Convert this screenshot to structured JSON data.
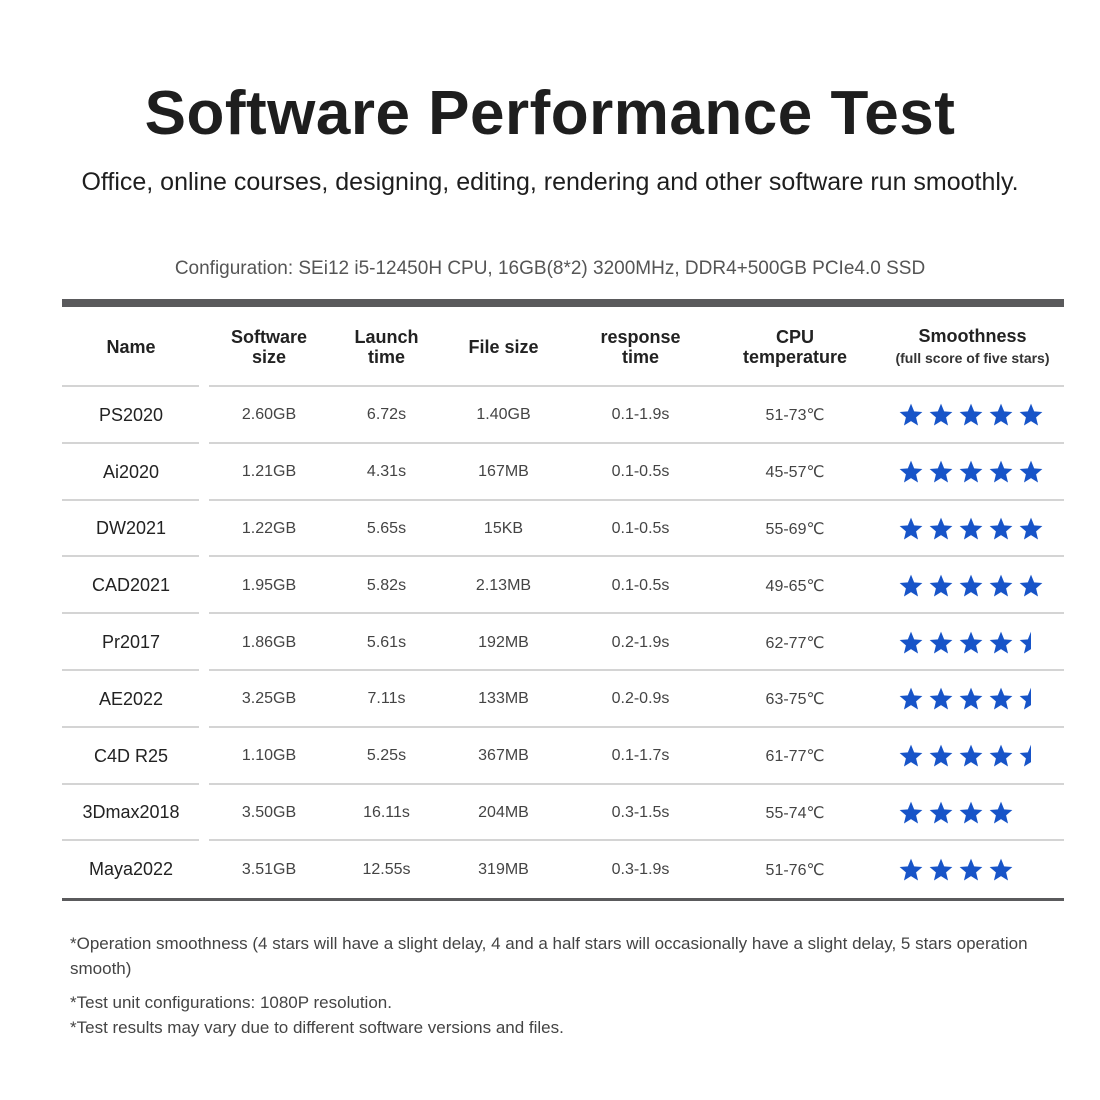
{
  "title": "Software Performance Test",
  "subtitle": "Office, online courses, designing, editing, rendering and other software run smoothly.",
  "configuration": "Configuration: SEi12 i5-12450H CPU, 16GB(8*2) 3200MHz, DDR4+500GB PCIe4.0 SSD",
  "colors": {
    "star": "#1754c8",
    "rule": "#5a5a5c"
  },
  "table": {
    "headers": {
      "name": "Name",
      "software_size_1": "Software",
      "software_size_2": "size",
      "launch_time_1": "Launch",
      "launch_time_2": "time",
      "file_size": "File size",
      "response_time_1": "response",
      "response_time_2": "time",
      "cpu_temp_1": "CPU",
      "cpu_temp_2": "temperature",
      "smoothness": "Smoothness",
      "smoothness_note": "(full score of five stars)"
    },
    "rows": [
      {
        "name": "PS2020",
        "software_size": "2.60GB",
        "launch_time": "6.72s",
        "file_size": "1.40GB",
        "response_time": "0.1-1.9s",
        "cpu_temp": "51-73℃",
        "stars": 5
      },
      {
        "name": "Ai2020",
        "software_size": "1.21GB",
        "launch_time": "4.31s",
        "file_size": "167MB",
        "response_time": "0.1-0.5s",
        "cpu_temp": "45-57℃",
        "stars": 5
      },
      {
        "name": "DW2021",
        "software_size": "1.22GB",
        "launch_time": "5.65s",
        "file_size": "15KB",
        "response_time": "0.1-0.5s",
        "cpu_temp": "55-69℃",
        "stars": 5
      },
      {
        "name": "CAD2021",
        "software_size": "1.95GB",
        "launch_time": "5.82s",
        "file_size": "2.13MB",
        "response_time": "0.1-0.5s",
        "cpu_temp": "49-65℃",
        "stars": 5
      },
      {
        "name": "Pr2017",
        "software_size": "1.86GB",
        "launch_time": "5.61s",
        "file_size": "192MB",
        "response_time": "0.2-1.9s",
        "cpu_temp": "62-77℃",
        "stars": 4.5
      },
      {
        "name": "AE2022",
        "software_size": "3.25GB",
        "launch_time": "7.11s",
        "file_size": "133MB",
        "response_time": "0.2-0.9s",
        "cpu_temp": "63-75℃",
        "stars": 4.5
      },
      {
        "name": "C4D R25",
        "software_size": "1.10GB",
        "launch_time": "5.25s",
        "file_size": "367MB",
        "response_time": "0.1-1.7s",
        "cpu_temp": "61-77℃",
        "stars": 4.5
      },
      {
        "name": "3Dmax2018",
        "software_size": "3.50GB",
        "launch_time": "16.11s",
        "file_size": "204MB",
        "response_time": "0.3-1.5s",
        "cpu_temp": "55-74℃",
        "stars": 4
      },
      {
        "name": "Maya2022",
        "software_size": "3.51GB",
        "launch_time": "12.55s",
        "file_size": "319MB",
        "response_time": "0.3-1.9s",
        "cpu_temp": "51-76℃",
        "stars": 4
      }
    ]
  },
  "notes": [
    "*Operation smoothness (4 stars will have a slight delay, 4 and a half stars will occasionally have a slight delay, 5 stars operation smooth)",
    "*Test unit configurations: 1080P resolution.",
    "*Test results may vary due to different software versions and files."
  ]
}
